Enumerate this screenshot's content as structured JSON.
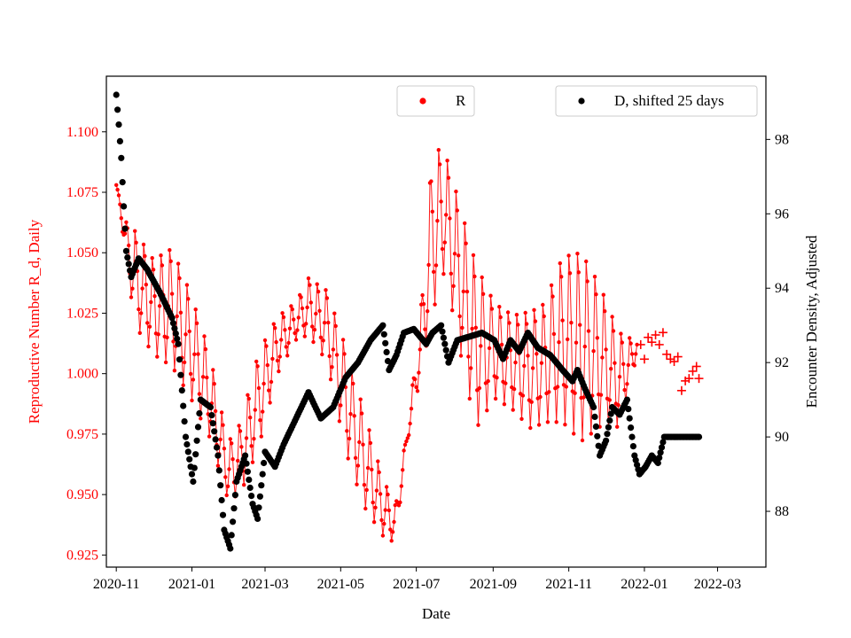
{
  "chart_data": {
    "type": "scatter",
    "xlabel": "Date",
    "ylabel_left": "Reproductive Number R_d, Daily",
    "ylabel_right": "Encounter Density, Adjusted",
    "x_range": [
      "2020-10-24",
      "2022-04-09"
    ],
    "ylim_left": [
      0.92,
      1.123
    ],
    "ylim_right": [
      86.5,
      99.7
    ],
    "x_ticks": [
      "2020-11",
      "2021-01",
      "2021-03",
      "2021-05",
      "2021-07",
      "2021-09",
      "2021-11",
      "2022-01",
      "2022-03"
    ],
    "y_ticks_left": [
      "0.925",
      "0.950",
      "0.975",
      "1.000",
      "1.025",
      "1.050",
      "1.075",
      "1.100"
    ],
    "y_ticks_right": [
      "88",
      "90",
      "92",
      "94",
      "96",
      "98"
    ],
    "legend": [
      {
        "label": "R",
        "color": "#ff0000",
        "marker": "dot",
        "placement": "top-center"
      },
      {
        "label": "D, shifted 25 days",
        "color": "#000000",
        "marker": "dot",
        "placement": "top-right"
      }
    ],
    "series": [
      {
        "name": "R",
        "axis": "left",
        "color": "#ff0000",
        "start_date": "2020-11-01",
        "note": "daily central value with weekly oscillation envelope (half-width amp); final segment drawn as '+' markers",
        "keyframes": [
          {
            "day": 0,
            "value": 1.078,
            "amp": 0.0
          },
          {
            "day": 8,
            "value": 1.055,
            "amp": 0.008
          },
          {
            "day": 15,
            "value": 1.04,
            "amp": 0.02
          },
          {
            "day": 30,
            "value": 1.028,
            "amp": 0.02
          },
          {
            "day": 45,
            "value": 1.028,
            "amp": 0.025
          },
          {
            "day": 60,
            "value": 1.012,
            "amp": 0.022
          },
          {
            "day": 75,
            "value": 0.992,
            "amp": 0.018
          },
          {
            "day": 90,
            "value": 0.96,
            "amp": 0.012
          },
          {
            "day": 100,
            "value": 0.965,
            "amp": 0.015
          },
          {
            "day": 115,
            "value": 0.99,
            "amp": 0.02
          },
          {
            "day": 130,
            "value": 1.012,
            "amp": 0.012
          },
          {
            "day": 145,
            "value": 1.022,
            "amp": 0.008
          },
          {
            "day": 155,
            "value": 1.028,
            "amp": 0.012
          },
          {
            "day": 170,
            "value": 1.02,
            "amp": 0.015
          },
          {
            "day": 185,
            "value": 0.99,
            "amp": 0.022
          },
          {
            "day": 200,
            "value": 0.965,
            "amp": 0.02
          },
          {
            "day": 215,
            "value": 0.945,
            "amp": 0.012
          },
          {
            "day": 225,
            "value": 0.938,
            "amp": 0.008
          },
          {
            "day": 235,
            "value": 0.975,
            "amp": 0.003
          },
          {
            "day": 245,
            "value": 1.01,
            "amp": 0.012
          },
          {
            "day": 255,
            "value": 1.06,
            "amp": 0.035
          },
          {
            "day": 265,
            "value": 1.068,
            "amp": 0.025
          },
          {
            "day": 275,
            "value": 1.045,
            "amp": 0.03
          },
          {
            "day": 290,
            "value": 1.012,
            "amp": 0.035
          },
          {
            "day": 305,
            "value": 1.01,
            "amp": 0.02
          },
          {
            "day": 320,
            "value": 1.005,
            "amp": 0.02
          },
          {
            "day": 335,
            "value": 1.002,
            "amp": 0.025
          },
          {
            "day": 345,
            "value": 1.005,
            "amp": 0.025
          },
          {
            "day": 360,
            "value": 1.015,
            "amp": 0.035
          },
          {
            "day": 375,
            "value": 1.012,
            "amp": 0.04
          },
          {
            "day": 390,
            "value": 1.008,
            "amp": 0.03
          },
          {
            "day": 405,
            "value": 0.998,
            "amp": 0.02
          },
          {
            "day": 415,
            "value": 1.005,
            "amp": 0.01
          },
          {
            "day": 420,
            "value": 1.012,
            "amp": 0.003
          }
        ],
        "tail_points": [
          {
            "day": 423,
            "value": 1.012
          },
          {
            "day": 426,
            "value": 1.006
          },
          {
            "day": 429,
            "value": 1.015
          },
          {
            "day": 432,
            "value": 1.013
          },
          {
            "day": 435,
            "value": 1.016
          },
          {
            "day": 438,
            "value": 1.012
          },
          {
            "day": 441,
            "value": 1.017
          },
          {
            "day": 444,
            "value": 1.008
          },
          {
            "day": 447,
            "value": 1.006
          },
          {
            "day": 450,
            "value": 1.005
          },
          {
            "day": 453,
            "value": 1.007
          },
          {
            "day": 456,
            "value": 0.993
          },
          {
            "day": 459,
            "value": 0.997
          },
          {
            "day": 462,
            "value": 0.998
          },
          {
            "day": 465,
            "value": 1.001
          },
          {
            "day": 468,
            "value": 1.003
          },
          {
            "day": 470,
            "value": 0.998
          }
        ]
      },
      {
        "name": "D, shifted 25 days",
        "axis": "right",
        "color": "#000000",
        "start_date": "2020-11-01",
        "keyframes": [
          {
            "day": 0,
            "value": 99.2
          },
          {
            "day": 2,
            "value": 98.4
          },
          {
            "day": 4,
            "value": 97.5
          },
          {
            "day": 6,
            "value": 96.2
          },
          {
            "day": 8,
            "value": 95.0
          },
          {
            "day": 12,
            "value": 94.3
          },
          {
            "day": 18,
            "value": 94.8
          },
          {
            "day": 25,
            "value": 94.5
          },
          {
            "day": 35,
            "value": 93.9
          },
          {
            "day": 45,
            "value": 93.2
          },
          {
            "day": 50,
            "value": 92.5
          },
          {
            "day": 56,
            "value": 90.0
          },
          {
            "day": 62,
            "value": 88.8
          },
          {
            "day": 68,
            "value": 91.0
          },
          {
            "day": 76,
            "value": 90.8
          },
          {
            "day": 82,
            "value": 89.5
          },
          {
            "day": 87,
            "value": 87.5
          },
          {
            "day": 92,
            "value": 87.0
          },
          {
            "day": 97,
            "value": 88.8
          },
          {
            "day": 104,
            "value": 89.5
          },
          {
            "day": 110,
            "value": 88.2
          },
          {
            "day": 114,
            "value": 87.8
          },
          {
            "day": 120,
            "value": 89.6
          },
          {
            "day": 128,
            "value": 89.2
          },
          {
            "day": 135,
            "value": 89.8
          },
          {
            "day": 145,
            "value": 90.5
          },
          {
            "day": 155,
            "value": 91.2
          },
          {
            "day": 165,
            "value": 90.5
          },
          {
            "day": 175,
            "value": 90.8
          },
          {
            "day": 185,
            "value": 91.6
          },
          {
            "day": 195,
            "value": 92.0
          },
          {
            "day": 205,
            "value": 92.6
          },
          {
            "day": 215,
            "value": 93.0
          },
          {
            "day": 220,
            "value": 91.8
          },
          {
            "day": 226,
            "value": 92.2
          },
          {
            "day": 232,
            "value": 92.8
          },
          {
            "day": 240,
            "value": 92.9
          },
          {
            "day": 250,
            "value": 92.5
          },
          {
            "day": 255,
            "value": 92.8
          },
          {
            "day": 262,
            "value": 93.0
          },
          {
            "day": 268,
            "value": 92.0
          },
          {
            "day": 275,
            "value": 92.6
          },
          {
            "day": 285,
            "value": 92.7
          },
          {
            "day": 295,
            "value": 92.8
          },
          {
            "day": 305,
            "value": 92.6
          },
          {
            "day": 312,
            "value": 92.1
          },
          {
            "day": 318,
            "value": 92.6
          },
          {
            "day": 325,
            "value": 92.3
          },
          {
            "day": 332,
            "value": 92.8
          },
          {
            "day": 340,
            "value": 92.4
          },
          {
            "day": 350,
            "value": 92.2
          },
          {
            "day": 360,
            "value": 91.8
          },
          {
            "day": 368,
            "value": 91.5
          },
          {
            "day": 372,
            "value": 91.8
          },
          {
            "day": 378,
            "value": 91.3
          },
          {
            "day": 385,
            "value": 90.8
          },
          {
            "day": 390,
            "value": 89.5
          },
          {
            "day": 395,
            "value": 89.9
          },
          {
            "day": 400,
            "value": 90.8
          },
          {
            "day": 406,
            "value": 90.6
          },
          {
            "day": 412,
            "value": 91.0
          },
          {
            "day": 418,
            "value": 89.5
          },
          {
            "day": 422,
            "value": 89.0
          },
          {
            "day": 427,
            "value": 89.2
          },
          {
            "day": 432,
            "value": 89.5
          },
          {
            "day": 437,
            "value": 89.3
          },
          {
            "day": 442,
            "value": 90.0
          },
          {
            "day": 445,
            "value": 90.0
          },
          {
            "day": 470,
            "value": 90.0
          }
        ]
      }
    ]
  }
}
